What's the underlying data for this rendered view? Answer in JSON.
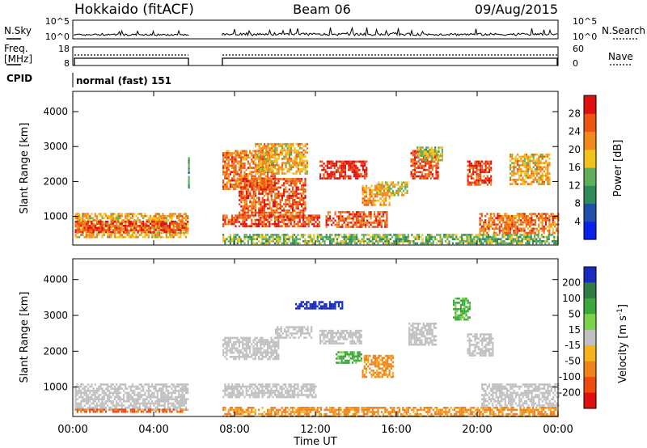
{
  "header": {
    "station": "Hokkaido (fitACF)",
    "beam": "Beam 06",
    "date": "09/Aug/2015"
  },
  "nsky_panel": {
    "left_label": "N.Sky",
    "right_label": "N.Search",
    "left_ticks": [
      "10^5",
      "10^0"
    ],
    "right_ticks": [
      "10^5",
      "10^0"
    ]
  },
  "freq_panel": {
    "left_label_1": "Freq.",
    "left_label_2": "[MHz]",
    "right_label": "Nave",
    "left_ticks": [
      "18",
      "8"
    ],
    "right_ticks": [
      "60",
      "0"
    ]
  },
  "cpid": {
    "label": "CPID",
    "value": "normal (fast) 151"
  },
  "colors": {
    "power_scale": [
      "#0a22e8",
      "#1f4fa8",
      "#2e8b57",
      "#5fae5a",
      "#f2c21a",
      "#f08a1a",
      "#ee5511",
      "#e01010"
    ],
    "velocity_scale": [
      "#1a2bc4",
      "#2e7d46",
      "#3aa83a",
      "#7cd24a",
      "#c0c0c0",
      "#f5b21c",
      "#f08318",
      "#ee4a10",
      "#e01010"
    ],
    "ground_scatter": "#bdbdbd"
  },
  "chart_data": [
    {
      "type": "heatmap",
      "title": "",
      "xlabel": "Time UT",
      "ylabel": "Slant Range [km]",
      "x_range_hours": [
        0,
        24
      ],
      "x_tick_labels": [
        "00:00",
        "04:00",
        "08:00",
        "12:00",
        "16:00",
        "20:00",
        "00:00"
      ],
      "ylim_km": [
        180,
        4580
      ],
      "y_tick_values": [
        1000,
        2000,
        3000,
        4000
      ],
      "colorbar_label": "Power [dB]",
      "colorbar_ticks": [
        4,
        8,
        12,
        16,
        20,
        24,
        28
      ],
      "colorbar_range": [
        0,
        32
      ],
      "regions": [
        {
          "t": [
            0.1,
            5.7
          ],
          "r": [
            380,
            1100
          ],
          "value": 20
        },
        {
          "t": [
            0.1,
            5.7
          ],
          "r": [
            560,
            880
          ],
          "value": 27
        },
        {
          "t": [
            5.7,
            5.75
          ],
          "r": [
            1800,
            2700
          ],
          "value": 12
        },
        {
          "t": [
            7.4,
            12.2
          ],
          "r": [
            700,
            1050
          ],
          "value": 27
        },
        {
          "t": [
            7.4,
            10.0
          ],
          "r": [
            1800,
            2900
          ],
          "value": 24
        },
        {
          "t": [
            8.2,
            11.5
          ],
          "r": [
            1000,
            2100
          ],
          "value": 26
        },
        {
          "t": [
            9.0,
            11.6
          ],
          "r": [
            2200,
            3100
          ],
          "value": 20
        },
        {
          "t": [
            12.2,
            14.5
          ],
          "r": [
            2100,
            2600
          ],
          "value": 29
        },
        {
          "t": [
            12.5,
            15.5
          ],
          "r": [
            700,
            1150
          ],
          "value": 26
        },
        {
          "t": [
            14.3,
            15.7
          ],
          "r": [
            1300,
            1900
          ],
          "value": 22
        },
        {
          "t": [
            15.0,
            16.5
          ],
          "r": [
            1600,
            2000
          ],
          "value": 18
        },
        {
          "t": [
            16.7,
            18.1
          ],
          "r": [
            2100,
            2900
          ],
          "value": 27
        },
        {
          "t": [
            17.0,
            18.3
          ],
          "r": [
            2600,
            3000
          ],
          "value": 16
        },
        {
          "t": [
            19.5,
            20.7
          ],
          "r": [
            1900,
            2600
          ],
          "value": 27
        },
        {
          "t": [
            20.1,
            24.0
          ],
          "r": [
            500,
            1100
          ],
          "value": 24
        },
        {
          "t": [
            21.6,
            23.6
          ],
          "r": [
            1900,
            2800
          ],
          "value": 20
        },
        {
          "t": [
            7.4,
            24.0
          ],
          "r": [
            200,
            500
          ],
          "value": 14
        }
      ]
    },
    {
      "type": "heatmap",
      "title": "",
      "xlabel": "Time UT",
      "ylabel": "Slant Range [km]",
      "x_range_hours": [
        0,
        24
      ],
      "x_tick_labels": [
        "00:00",
        "04:00",
        "08:00",
        "12:00",
        "16:00",
        "20:00",
        "00:00"
      ],
      "ylim_km": [
        180,
        4580
      ],
      "y_tick_values": [
        1000,
        2000,
        3000,
        4000
      ],
      "colorbar_label": "Velocity [m s^-1]",
      "colorbar_ticks": [
        200,
        100,
        50,
        15,
        -15,
        -50,
        -100,
        -200
      ],
      "regions": [
        {
          "t": [
            0.1,
            5.7
          ],
          "r": [
            380,
            1100
          ],
          "value": 0
        },
        {
          "t": [
            0.1,
            5.7
          ],
          "r": [
            300,
            400
          ],
          "value": -80
        },
        {
          "t": [
            7.4,
            12.0
          ],
          "r": [
            700,
            1100
          ],
          "value": 0
        },
        {
          "t": [
            7.4,
            10.2
          ],
          "r": [
            1800,
            2400
          ],
          "value": 0
        },
        {
          "t": [
            10.0,
            11.8
          ],
          "r": [
            2400,
            2700
          ],
          "value": 0
        },
        {
          "t": [
            11.0,
            13.3
          ],
          "r": [
            3200,
            3400
          ],
          "value": 220
        },
        {
          "t": [
            12.2,
            14.3
          ],
          "r": [
            2200,
            2600
          ],
          "value": 0
        },
        {
          "t": [
            14.3,
            15.8
          ],
          "r": [
            1300,
            1900
          ],
          "value": -40
        },
        {
          "t": [
            13.0,
            14.3
          ],
          "r": [
            1700,
            2000
          ],
          "value": 40
        },
        {
          "t": [
            16.6,
            18.0
          ],
          "r": [
            2200,
            2800
          ],
          "value": 0
        },
        {
          "t": [
            19.5,
            20.8
          ],
          "r": [
            1900,
            2500
          ],
          "value": 0
        },
        {
          "t": [
            20.2,
            24.0
          ],
          "r": [
            500,
            1100
          ],
          "value": 0
        },
        {
          "t": [
            18.8,
            19.6
          ],
          "r": [
            2900,
            3500
          ],
          "value": 40
        },
        {
          "t": [
            7.4,
            24.0
          ],
          "r": [
            200,
            450
          ],
          "value": -40
        }
      ]
    }
  ]
}
